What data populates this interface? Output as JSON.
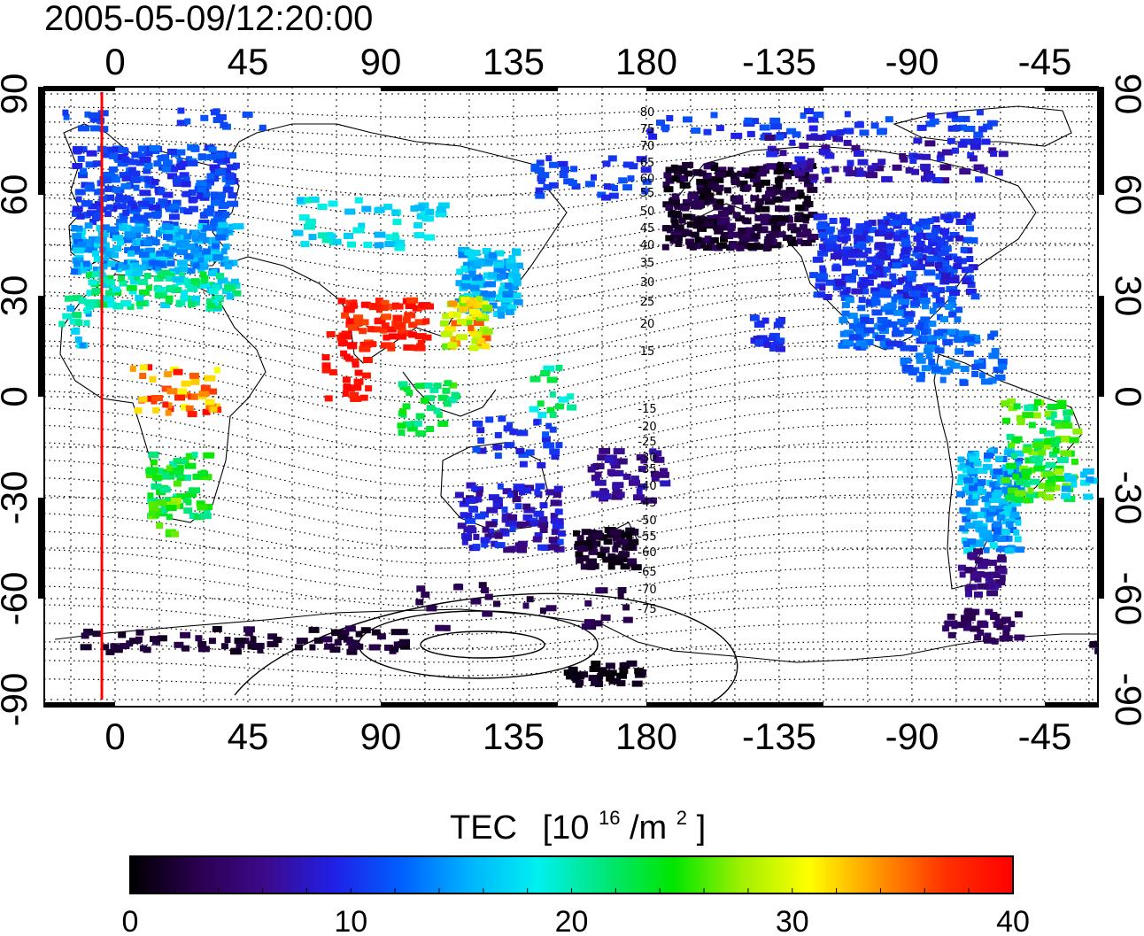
{
  "title": "2005-05-09/12:20:00",
  "map": {
    "lon_ticks_top": [
      "0",
      "45",
      "90",
      "135",
      "180",
      "-135",
      "-90",
      "-45"
    ],
    "lon_ticks_bottom": [
      "0",
      "45",
      "90",
      "135",
      "180",
      "-135",
      "-90",
      "-45"
    ],
    "lat_ticks_left": [
      "90",
      "60",
      "30",
      "0",
      "-30",
      "-60",
      "-90"
    ],
    "lat_ticks_right": [
      "90",
      "60",
      "30",
      "0",
      "-30",
      "-60",
      "-90"
    ],
    "magnetic_latitude_labels_north": [
      "80",
      "75",
      "70",
      "65",
      "60",
      "55",
      "50",
      "45",
      "40",
      "35",
      "30",
      "25",
      "20",
      "15"
    ],
    "magnetic_latitude_labels_south": [
      "-15",
      "-20",
      "-25",
      "-30",
      "-35",
      "-40",
      "-45",
      "-50",
      "-55",
      "-60",
      "-65",
      "-70",
      "-75"
    ],
    "terminator_color": "#ff0000",
    "grid": true
  },
  "colorbar": {
    "label_main": "TEC",
    "label_unit_open": "[10",
    "label_exp1": "16",
    "label_unit_mid": "/m",
    "label_exp2": "2",
    "label_unit_close": "]",
    "ticks": [
      "0",
      "10",
      "20",
      "30",
      "40"
    ],
    "min": 0,
    "max": 40,
    "colors": [
      "#000000",
      "#2a0050",
      "#3c0a8c",
      "#2020e6",
      "#0060ff",
      "#00b4ff",
      "#00f0f0",
      "#00e678",
      "#00e600",
      "#a0f000",
      "#ffff00",
      "#ff9600",
      "#ff3200",
      "#ff0000"
    ]
  }
}
